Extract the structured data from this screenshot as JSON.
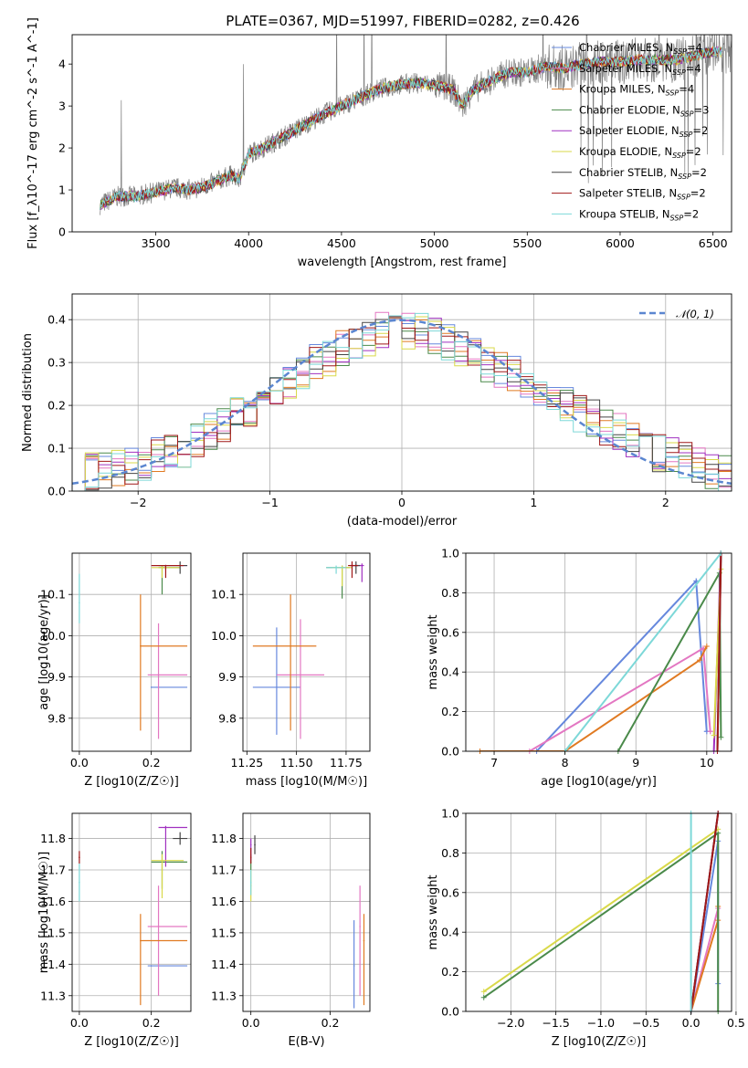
{
  "figure_title": "PLATE=0367, MJD=51997, FIBERID=0282, z=0.426",
  "colors": {
    "Chabrier MILES": "#6688dd",
    "Salpeter MILES": "#e377c2",
    "Kroupa MILES": "#e07a22",
    "Chabrier ELODIE": "#4a8a4a",
    "Salpeter ELODIE": "#a030c0",
    "Kroupa ELODIE": "#d9d94a",
    "Chabrier STELIB": "#444444",
    "Salpeter STELIB": "#a01818",
    "Kroupa STELIB": "#7dd8d8",
    "data": "#808080",
    "gaussian": "#5b86d0"
  },
  "chart_data": [
    {
      "type": "line",
      "panel": "spectrum",
      "xlabel": "wavelength [Angstrom, rest frame]",
      "ylabel": "Flux [f_λ10^-17 erg cm^-2 s^-1 A^-1]",
      "xlim": [
        3050,
        6600
      ],
      "ylim": [
        0,
        4.7
      ],
      "xticks": [
        3500,
        4000,
        4500,
        5000,
        5500,
        6000,
        6500
      ],
      "yticks": [
        0,
        1,
        2,
        3,
        4
      ],
      "legend_position": "top-right",
      "legend": [
        {
          "label": "Chabrier MILES, N_SSP=4",
          "color_key": "Chabrier MILES"
        },
        {
          "label": "Salpeter MILES, N_SSP=4",
          "color_key": "Salpeter MILES"
        },
        {
          "label": "Kroupa MILES, N_SSP=4",
          "color_key": "Kroupa MILES"
        },
        {
          "label": "Chabrier ELODIE, N_SSP=3",
          "color_key": "Chabrier ELODIE"
        },
        {
          "label": "Salpeter ELODIE, N_SSP=2",
          "color_key": "Salpeter ELODIE"
        },
        {
          "label": "Kroupa ELODIE, N_SSP=2",
          "color_key": "Kroupa ELODIE"
        },
        {
          "label": "Chabrier STELIB, N_SSP=2",
          "color_key": "Chabrier STELIB"
        },
        {
          "label": "Salpeter STELIB, N_SSP=2",
          "color_key": "Salpeter STELIB"
        },
        {
          "label": "Kroupa STELIB, N_SSP=2",
          "color_key": "Kroupa STELIB"
        }
      ],
      "continuum": {
        "x": [
          3200,
          3300,
          3400,
          3500,
          3600,
          3700,
          3800,
          3900,
          3950,
          4000,
          4100,
          4200,
          4300,
          4400,
          4500,
          4600,
          4700,
          4800,
          4900,
          5000,
          5100,
          5150,
          5200,
          5300,
          5400,
          5500,
          5600,
          5700,
          5800,
          5900,
          6000,
          6100,
          6200,
          6300,
          6400,
          6500
        ],
        "y": [
          0.65,
          0.85,
          0.85,
          0.95,
          1.05,
          1.0,
          1.15,
          1.35,
          1.25,
          1.85,
          2.05,
          2.3,
          2.55,
          2.8,
          3.0,
          3.2,
          3.4,
          3.5,
          3.55,
          3.5,
          3.4,
          3.0,
          3.35,
          3.6,
          3.8,
          3.8,
          3.95,
          3.9,
          4.0,
          4.05,
          4.05,
          4.1,
          4.1,
          4.1,
          4.2,
          4.3
        ]
      }
    },
    {
      "type": "bar",
      "panel": "residual histogram",
      "xlabel": "(data-model)/error",
      "ylabel": "Normed distribution",
      "xlim": [
        -2.5,
        2.5
      ],
      "ylim": [
        0,
        0.46
      ],
      "xticks": [
        -2,
        -1,
        0,
        1,
        2
      ],
      "yticks": [
        0.0,
        0.1,
        0.2,
        0.3,
        0.4
      ],
      "grid": true,
      "legend_position": "top-right",
      "gaussian_label": "𝒩(0, 1)",
      "bin_edges": [
        -2.5,
        -2.4,
        -2.3,
        -2.2,
        -2.1,
        -2.0,
        -1.9,
        -1.8,
        -1.7,
        -1.6,
        -1.5,
        -1.4,
        -1.3,
        -1.2,
        -1.1,
        -1.0,
        -0.9,
        -0.8,
        -0.7,
        -0.6,
        -0.5,
        -0.4,
        -0.3,
        -0.2,
        -0.1,
        0.0,
        0.1,
        0.2,
        0.3,
        0.4,
        0.5,
        0.6,
        0.7,
        0.8,
        0.9,
        1.0,
        1.1,
        1.2,
        1.3,
        1.4,
        1.5,
        1.6,
        1.7,
        1.8,
        1.9,
        2.0,
        2.1,
        2.2,
        2.3,
        2.4,
        2.5
      ],
      "base_density": [
        0.04,
        0.045,
        0.05,
        0.055,
        0.06,
        0.07,
        0.08,
        0.09,
        0.1,
        0.12,
        0.14,
        0.16,
        0.18,
        0.19,
        0.21,
        0.23,
        0.25,
        0.28,
        0.3,
        0.31,
        0.33,
        0.35,
        0.36,
        0.38,
        0.38,
        0.37,
        0.37,
        0.36,
        0.35,
        0.33,
        0.32,
        0.3,
        0.28,
        0.27,
        0.26,
        0.24,
        0.22,
        0.2,
        0.18,
        0.17,
        0.15,
        0.14,
        0.12,
        0.1,
        0.09,
        0.08,
        0.07,
        0.06,
        0.05,
        0.04
      ]
    },
    {
      "type": "scatter",
      "panel": "age vs Z",
      "xlabel": "Z [log10(Z/Z☉)]",
      "ylabel": "age  [log10(age/yr)]",
      "xlim": [
        -0.02,
        0.31
      ],
      "ylim": [
        9.72,
        10.2
      ],
      "xticks": [
        0.0,
        0.2
      ],
      "yticks": [
        9.8,
        9.9,
        10.0,
        10.1
      ],
      "grid": true,
      "points": [
        {
          "model": "Chabrier MILES",
          "x": 0.2,
          "y": 9.875,
          "xlo": 0.2,
          "xhi": 0.3,
          "ylo": 9.875,
          "yhi": 9.875
        },
        {
          "model": "Salpeter MILES",
          "x": 0.22,
          "y": 9.905,
          "xlo": 0.19,
          "xhi": 0.3,
          "ylo": 9.75,
          "yhi": 10.03
        },
        {
          "model": "Kroupa MILES",
          "x": 0.17,
          "y": 9.975,
          "xlo": 0.17,
          "xhi": 0.3,
          "ylo": 9.77,
          "yhi": 10.1
        },
        {
          "model": "Chabrier ELODIE",
          "x": 0.23,
          "y": 10.165,
          "xlo": 0.22,
          "xhi": 0.28,
          "ylo": 10.1,
          "yhi": 10.17
        },
        {
          "model": "Salpeter ELODIE",
          "x": 0.24,
          "y": 10.17,
          "xlo": 0.2,
          "xhi": 0.3,
          "ylo": 10.16,
          "yhi": 10.17
        },
        {
          "model": "Kroupa ELODIE",
          "x": 0.23,
          "y": 10.165,
          "xlo": 0.2,
          "xhi": 0.28,
          "ylo": 10.14,
          "yhi": 10.17
        },
        {
          "model": "Chabrier STELIB",
          "x": 0.28,
          "y": 10.17,
          "xlo": 0.22,
          "xhi": 0.3,
          "ylo": 10.15,
          "yhi": 10.18
        },
        {
          "model": "Salpeter STELIB",
          "x": 0.24,
          "y": 10.17,
          "xlo": 0.2,
          "xhi": 0.29,
          "ylo": 10.14,
          "yhi": 10.17
        },
        {
          "model": "Kroupa STELIB",
          "x": 0.0,
          "y": 10.08,
          "xlo": 0.0,
          "xhi": 0.0,
          "ylo": 10.03,
          "yhi": 10.15
        }
      ]
    },
    {
      "type": "scatter",
      "panel": "age vs mass",
      "xlabel": "mass [log10(M/M☉)]",
      "ylabel": "",
      "xlim": [
        11.23,
        11.87
      ],
      "ylim": [
        9.72,
        10.2
      ],
      "xticks": [
        11.25,
        11.5,
        11.75
      ],
      "yticks": [
        9.8,
        9.9,
        10.0,
        10.1
      ],
      "grid": true,
      "points": [
        {
          "model": "Chabrier MILES",
          "x": 11.4,
          "y": 9.875,
          "xlo": 11.28,
          "xhi": 11.52,
          "ylo": 9.76,
          "yhi": 10.02
        },
        {
          "model": "Salpeter MILES",
          "x": 11.52,
          "y": 9.905,
          "xlo": 11.4,
          "xhi": 11.64,
          "ylo": 9.75,
          "yhi": 10.04
        },
        {
          "model": "Kroupa MILES",
          "x": 11.47,
          "y": 9.975,
          "xlo": 11.28,
          "xhi": 11.6,
          "ylo": 9.77,
          "yhi": 10.1
        },
        {
          "model": "Chabrier ELODIE",
          "x": 11.73,
          "y": 10.165,
          "xlo": 11.65,
          "xhi": 11.77,
          "ylo": 10.09,
          "yhi": 10.17
        },
        {
          "model": "Salpeter ELODIE",
          "x": 11.83,
          "y": 10.17,
          "xlo": 11.77,
          "xhi": 11.84,
          "ylo": 10.13,
          "yhi": 10.175
        },
        {
          "model": "Kroupa ELODIE",
          "x": 11.73,
          "y": 10.165,
          "xlo": 11.68,
          "xhi": 11.78,
          "ylo": 10.12,
          "yhi": 10.17
        },
        {
          "model": "Chabrier STELIB",
          "x": 11.8,
          "y": 10.17,
          "xlo": 11.78,
          "xhi": 11.82,
          "ylo": 10.15,
          "yhi": 10.18
        },
        {
          "model": "Salpeter STELIB",
          "x": 11.78,
          "y": 10.17,
          "xlo": 11.76,
          "xhi": 11.81,
          "ylo": 10.14,
          "yhi": 10.18
        },
        {
          "model": "Kroupa STELIB",
          "x": 11.7,
          "y": 10.165,
          "xlo": 11.65,
          "xhi": 11.75,
          "ylo": 10.15,
          "yhi": 10.17
        }
      ]
    },
    {
      "type": "line",
      "panel": "cumulative mass weight vs age",
      "xlabel": "age  [log10(age/yr)]",
      "ylabel": "mass weight",
      "xlim": [
        6.6,
        10.35
      ],
      "ylim": [
        0,
        1
      ],
      "xticks": [
        7,
        8,
        9,
        10
      ],
      "yticks": [
        0.0,
        0.2,
        0.4,
        0.6,
        0.8,
        1.0
      ],
      "grid": true,
      "series": [
        {
          "model": "Chabrier MILES",
          "x": [
            7.6,
            9.85,
            10.0,
            10.0
          ],
          "y": [
            0.0,
            0.86,
            0.1,
            0.1
          ]
        },
        {
          "model": "Salpeter MILES",
          "x": [
            7.5,
            9.95,
            10.05,
            10.05
          ],
          "y": [
            0.0,
            0.52,
            0.1,
            0.1
          ]
        },
        {
          "model": "Kroupa MILES",
          "x": [
            6.8,
            8.0,
            9.9,
            10.0
          ],
          "y": [
            0.0,
            0.0,
            0.46,
            0.53
          ]
        },
        {
          "model": "Chabrier ELODIE",
          "x": [
            8.75,
            10.18,
            10.2
          ],
          "y": [
            0.0,
            0.9,
            0.07
          ]
        },
        {
          "model": "Salpeter ELODIE",
          "x": [
            10.1,
            10.2
          ],
          "y": [
            0.0,
            1.0
          ]
        },
        {
          "model": "Kroupa ELODIE",
          "x": [
            10.1,
            10.2
          ],
          "y": [
            0.08,
            0.92
          ]
        },
        {
          "model": "Chabrier STELIB",
          "x": [
            10.15,
            10.2
          ],
          "y": [
            0.0,
            1.0
          ]
        },
        {
          "model": "Salpeter STELIB",
          "x": [
            10.15,
            10.2
          ],
          "y": [
            0.0,
            1.0
          ]
        },
        {
          "model": "Kroupa STELIB",
          "x": [
            8.0,
            10.2
          ],
          "y": [
            0.0,
            1.0
          ]
        }
      ]
    },
    {
      "type": "scatter",
      "panel": "mass vs Z",
      "xlabel": "Z [log10(Z/Z☉)]",
      "ylabel": "mass [log10(M/M☉)]",
      "xlim": [
        -0.02,
        0.31
      ],
      "ylim": [
        11.25,
        11.88
      ],
      "xticks": [
        0.0,
        0.2
      ],
      "yticks": [
        11.3,
        11.4,
        11.5,
        11.6,
        11.7,
        11.8
      ],
      "grid": true,
      "points": [
        {
          "model": "Chabrier MILES",
          "x": 0.2,
          "y": 11.395,
          "xlo": 0.19,
          "xhi": 0.3,
          "ylo": 11.395,
          "yhi": 11.395
        },
        {
          "model": "Salpeter MILES",
          "x": 0.22,
          "y": 11.52,
          "xlo": 0.19,
          "xhi": 0.3,
          "ylo": 11.3,
          "yhi": 11.65
        },
        {
          "model": "Kroupa MILES",
          "x": 0.17,
          "y": 11.475,
          "xlo": 0.17,
          "xhi": 0.3,
          "ylo": 11.27,
          "yhi": 11.56
        },
        {
          "model": "Chabrier ELODIE",
          "x": 0.23,
          "y": 11.725,
          "xlo": 0.2,
          "xhi": 0.3,
          "ylo": 11.64,
          "yhi": 11.76
        },
        {
          "model": "Salpeter ELODIE",
          "x": 0.24,
          "y": 11.835,
          "xlo": 0.22,
          "xhi": 0.3,
          "ylo": 11.71,
          "yhi": 11.84
        },
        {
          "model": "Kroupa ELODIE",
          "x": 0.23,
          "y": 11.73,
          "xlo": 0.2,
          "xhi": 0.29,
          "ylo": 11.61,
          "yhi": 11.75
        },
        {
          "model": "Chabrier STELIB",
          "x": 0.28,
          "y": 11.8,
          "xlo": 0.26,
          "xhi": 0.3,
          "ylo": 11.78,
          "yhi": 11.82
        },
        {
          "model": "Salpeter STELIB",
          "x": 0.0,
          "y": 11.74,
          "xlo": 0.0,
          "xhi": 0.0,
          "ylo": 11.72,
          "yhi": 11.76
        },
        {
          "model": "Kroupa STELIB",
          "x": 0.0,
          "y": 11.66,
          "xlo": 0.0,
          "xhi": 0.0,
          "ylo": 11.6,
          "yhi": 11.72
        }
      ]
    },
    {
      "type": "scatter",
      "panel": "mass vs E(B-V)",
      "xlabel": "E(B-V)",
      "ylabel": "",
      "xlim": [
        -0.02,
        0.3
      ],
      "ylim": [
        11.25,
        11.88
      ],
      "xticks": [
        0.0,
        0.2
      ],
      "yticks": [
        11.3,
        11.4,
        11.5,
        11.6,
        11.7,
        11.8
      ],
      "grid": true,
      "points": [
        {
          "model": "Chabrier MILES",
          "x": 0.26,
          "y": 11.395,
          "ylo": 11.26,
          "yhi": 11.54
        },
        {
          "model": "Salpeter MILES",
          "x": 0.275,
          "y": 11.52,
          "ylo": 11.3,
          "yhi": 11.65
        },
        {
          "model": "Kroupa MILES",
          "x": 0.285,
          "y": 11.475,
          "ylo": 11.27,
          "yhi": 11.56
        },
        {
          "model": "Chabrier ELODIE",
          "x": 0.0,
          "y": 11.725,
          "ylo": 11.7,
          "yhi": 11.75
        },
        {
          "model": "Salpeter ELODIE",
          "x": 0.0,
          "y": 11.78,
          "ylo": 11.73,
          "yhi": 11.8
        },
        {
          "model": "Kroupa ELODIE",
          "x": 0.0,
          "y": 11.65,
          "ylo": 11.6,
          "yhi": 11.7
        },
        {
          "model": "Chabrier STELIB",
          "x": 0.01,
          "y": 11.78,
          "ylo": 11.75,
          "yhi": 11.81
        },
        {
          "model": "Salpeter STELIB",
          "x": 0.0,
          "y": 11.74,
          "ylo": 11.72,
          "yhi": 11.77
        },
        {
          "model": "Kroupa STELIB",
          "x": 0.0,
          "y": 11.66,
          "ylo": 11.62,
          "yhi": 11.7
        }
      ]
    },
    {
      "type": "line",
      "panel": "cumulative mass weight vs Z",
      "xlabel": "Z [log10(Z/Z☉)]",
      "ylabel": "mass weight",
      "xlim": [
        -2.5,
        0.45
      ],
      "ylim": [
        0,
        1
      ],
      "xticks": [
        -2.0,
        -1.5,
        -1.0,
        -0.5,
        0.0,
        0.5
      ],
      "yticks": [
        0.0,
        0.2,
        0.4,
        0.6,
        0.8,
        1.0
      ],
      "grid": true,
      "series": [
        {
          "model": "Chabrier MILES",
          "x": [
            0.0,
            0.3,
            0.3
          ],
          "y": [
            0.0,
            0.86,
            0.14
          ]
        },
        {
          "model": "Salpeter MILES",
          "x": [
            0.0,
            0.3
          ],
          "y": [
            0.0,
            0.52
          ]
        },
        {
          "model": "Kroupa MILES",
          "x": [
            0.0,
            0.3,
            0.3
          ],
          "y": [
            0.0,
            0.46,
            0.53
          ]
        },
        {
          "model": "Chabrier ELODIE",
          "x": [
            -2.3,
            0.3,
            0.3
          ],
          "y": [
            0.07,
            0.9,
            0.0
          ]
        },
        {
          "model": "Salpeter ELODIE",
          "x": [
            0.0,
            0.3
          ],
          "y": [
            0.0,
            1.0
          ]
        },
        {
          "model": "Kroupa ELODIE",
          "x": [
            -2.3,
            0.3
          ],
          "y": [
            0.1,
            0.92
          ]
        },
        {
          "model": "Chabrier STELIB",
          "x": [
            0.0,
            0.3
          ],
          "y": [
            0.0,
            1.0
          ]
        },
        {
          "model": "Salpeter STELIB",
          "x": [
            0.0,
            0.3
          ],
          "y": [
            0.0,
            1.0
          ]
        },
        {
          "model": "Kroupa STELIB",
          "x": [
            0.0,
            0.0
          ],
          "y": [
            0.0,
            1.0
          ]
        }
      ]
    }
  ]
}
